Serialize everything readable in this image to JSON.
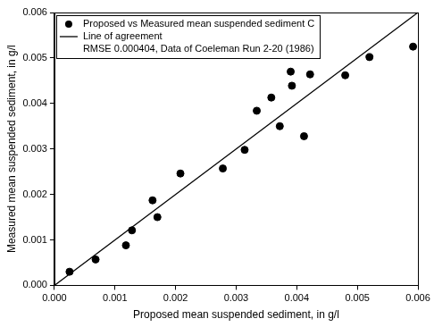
{
  "chart_data": {
    "type": "scatter",
    "xlabel": "Proposed mean suspended sediment, in g/l",
    "ylabel": "Measured mean suspended sediment, in g/l",
    "xlim": [
      0,
      0.006
    ],
    "ylim": [
      0,
      0.006
    ],
    "xticks": [
      {
        "value": 0,
        "label": "0.000"
      },
      0.001,
      0.002,
      0.003,
      0.004,
      0.005,
      0.006
    ],
    "yticks": [
      {
        "value": 0,
        "label": "0.000"
      },
      0.001,
      0.002,
      0.003,
      0.004,
      0.005,
      0.006
    ],
    "grid": false,
    "legend": "upper left",
    "annotations": [
      "RMSE 0.000404, Data of Coeleman Run 2-20 (1986)"
    ],
    "series": [
      {
        "name": "Proposed vs Measured mean suspended sediment C",
        "type": "scatter",
        "marker": "circle",
        "color": "#000000",
        "x": [
          0.00025,
          0.00068,
          0.00118,
          0.00128,
          0.00162,
          0.0017,
          0.00208,
          0.00278,
          0.00314,
          0.00334,
          0.00358,
          0.00372,
          0.0039,
          0.00392,
          0.00412,
          0.00422,
          0.0048,
          0.0052,
          0.00592
        ],
        "values": [
          0.0003,
          0.00057,
          0.00088,
          0.00121,
          0.00187,
          0.0015,
          0.00246,
          0.00257,
          0.00298,
          0.00384,
          0.00413,
          0.0035,
          0.0047,
          0.00439,
          0.00328,
          0.00464,
          0.00462,
          0.00502,
          0.00525
        ]
      },
      {
        "name": "Line of agreement",
        "type": "line",
        "line_style": "solid",
        "color": "#000000",
        "x": [
          0,
          0.006
        ],
        "values": [
          0,
          0.006
        ]
      }
    ]
  }
}
